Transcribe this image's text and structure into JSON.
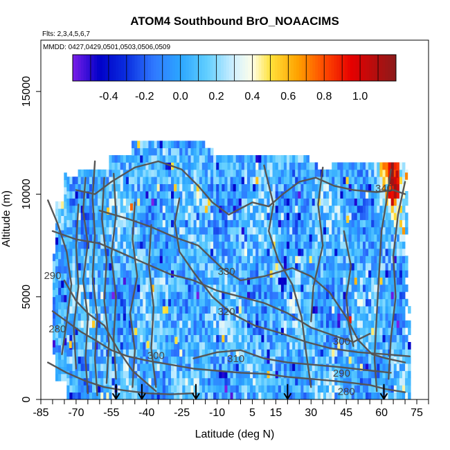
{
  "chart_data": {
    "type": "heatmap",
    "title": "ATOM4 Southbound BrO_NOAACIMS",
    "annotations": {
      "flights": "Flts: 2,3,4,5,6,7",
      "dates": "MMDD: 0427,0429,0501,0503,0506,0509"
    },
    "xlabel": "Latitude (deg N)",
    "ylabel": "Altitude (m)",
    "xlim": [
      -85,
      80
    ],
    "ylim": [
      0,
      17500
    ],
    "x_ticks": [
      -85,
      -70,
      -55,
      -40,
      -25,
      -10,
      5,
      15,
      30,
      45,
      60,
      75
    ],
    "x_tick_labels": [
      "-85",
      "-70",
      "-55",
      "-40",
      "-25",
      "-10",
      "5",
      "15",
      "30",
      "45",
      "60",
      "75"
    ],
    "x_minor_ticks": [
      -80,
      -75,
      -65,
      -60,
      -50,
      -45,
      -35,
      -30,
      -20,
      -15,
      -5,
      0,
      10,
      20,
      25,
      35,
      40,
      50,
      55,
      65,
      70,
      80
    ],
    "y_ticks": [
      0,
      5000,
      10000,
      15000
    ],
    "y_tick_labels": [
      "0",
      "5000",
      "10000",
      "15000"
    ],
    "colorbar": {
      "range": [
        -0.6,
        1.2
      ],
      "ticks": [
        -0.4,
        -0.2,
        0.0,
        0.2,
        0.4,
        0.6,
        0.8,
        1.0
      ],
      "tick_labels": [
        "-0.4",
        "-0.2",
        "0.0",
        "0.2",
        "0.4",
        "0.6",
        "0.8",
        "1.0"
      ],
      "stops": [
        {
          "v": -0.6,
          "color": "#7a1fe8"
        },
        {
          "v": -0.45,
          "color": "#0000c8"
        },
        {
          "v": -0.3,
          "color": "#0a2ee0"
        },
        {
          "v": -0.15,
          "color": "#2f78ff"
        },
        {
          "v": 0.0,
          "color": "#2ca6ff"
        },
        {
          "v": 0.15,
          "color": "#62cfff"
        },
        {
          "v": 0.3,
          "color": "#d2f0ff"
        },
        {
          "v": 0.4,
          "color": "#ffffe8"
        },
        {
          "v": 0.5,
          "color": "#ffe23c"
        },
        {
          "v": 0.65,
          "color": "#ffa300"
        },
        {
          "v": 0.8,
          "color": "#ff4a00"
        },
        {
          "v": 0.95,
          "color": "#e60000"
        },
        {
          "v": 1.2,
          "color": "#8b1a1a"
        }
      ]
    },
    "flight_markers_lat": [
      -53,
      -42,
      -19,
      20,
      61
    ],
    "contour_labels": [
      {
        "text": "340",
        "lat": 61,
        "alt": 10250
      },
      {
        "text": "330",
        "lat": -6,
        "alt": 6200
      },
      {
        "text": "320",
        "lat": -6,
        "alt": 4250
      },
      {
        "text": "310",
        "lat": -2,
        "alt": 1950
      },
      {
        "text": "300",
        "lat": -36,
        "alt": 2100
      },
      {
        "text": "300",
        "lat": 43,
        "alt": 2800
      },
      {
        "text": "290",
        "lat": -80,
        "alt": 6000
      },
      {
        "text": "290",
        "lat": 43,
        "alt": 1250
      },
      {
        "text": "280",
        "lat": -78,
        "alt": 3400
      },
      {
        "text": "280",
        "lat": 45,
        "alt": 350
      }
    ]
  }
}
